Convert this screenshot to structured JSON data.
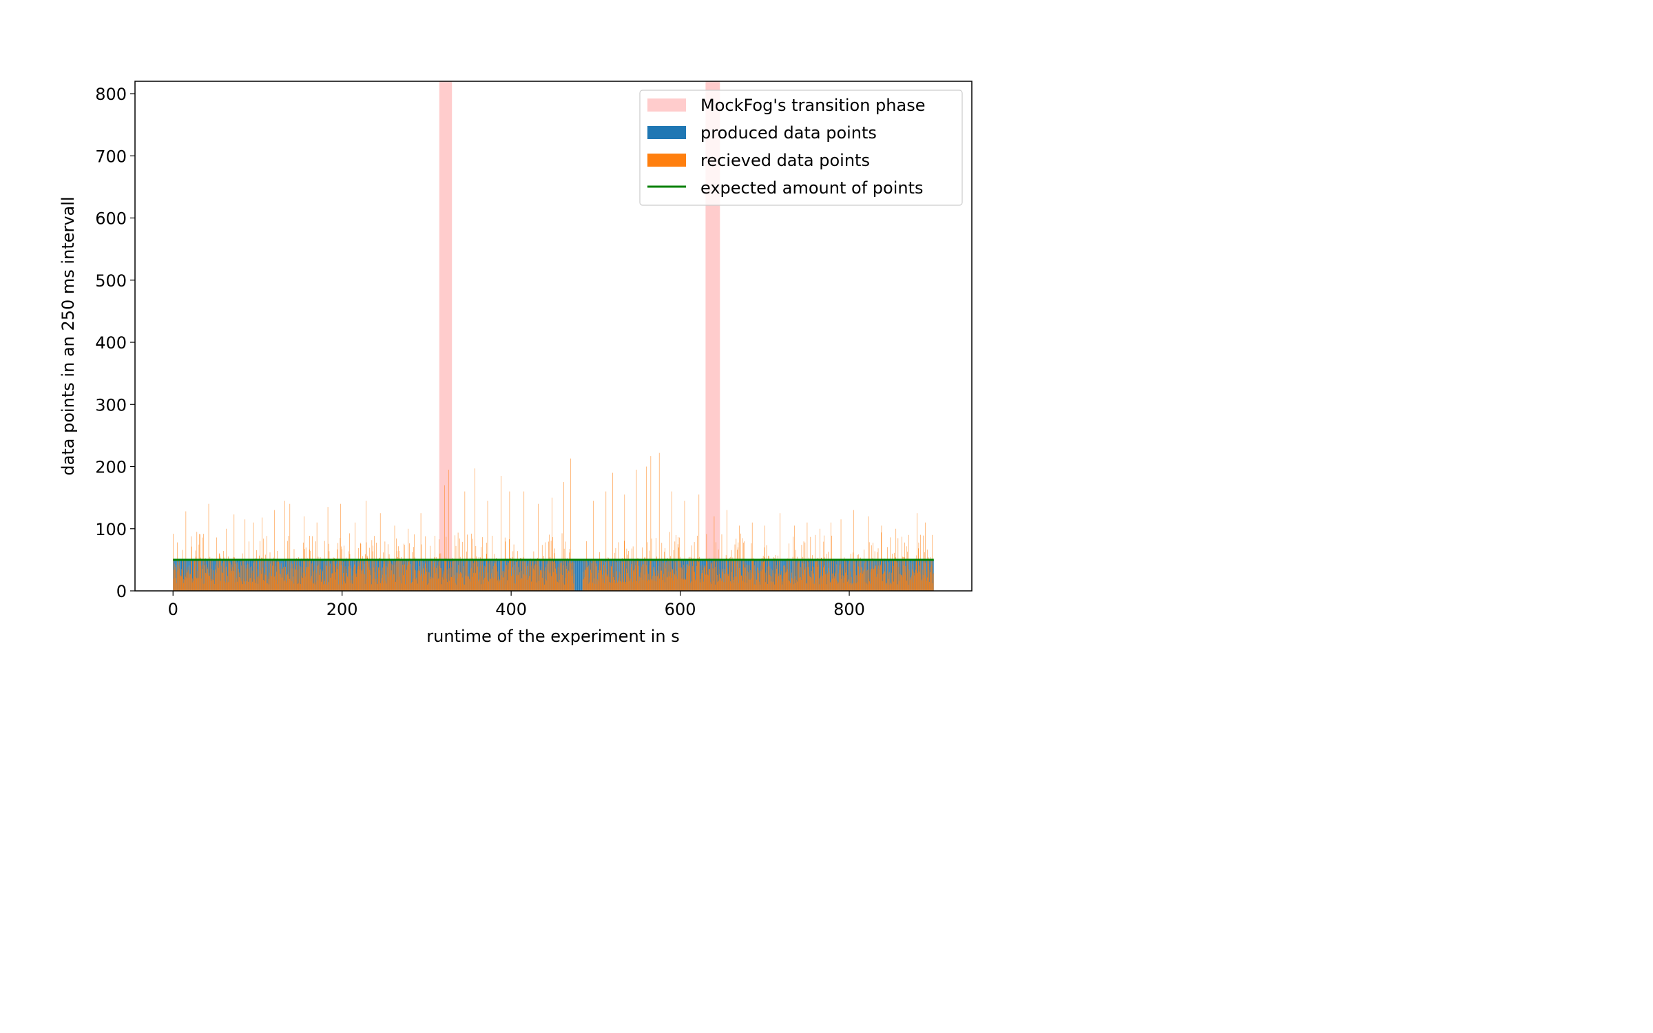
{
  "chart_data": {
    "type": "bar",
    "xlabel": "runtime of the experiment in s",
    "ylabel": "data points in an 250 ms intervall",
    "xlim": [
      -45,
      945
    ],
    "ylim": [
      0,
      820
    ],
    "xticks": [
      0,
      200,
      400,
      600,
      800
    ],
    "yticks": [
      0,
      100,
      200,
      300,
      400,
      500,
      600,
      700,
      800
    ],
    "legend_position": "top-right",
    "colors": {
      "transition": "#ffcccc",
      "produced": "#1f77b4",
      "received": "#ff7f0e",
      "expected": "#008000"
    },
    "transition_phases": [
      [
        315,
        330
      ],
      [
        630,
        647
      ]
    ],
    "expected_amount": 50,
    "produced_level": 50,
    "series": [
      {
        "name": "produced data points",
        "description": "roughly constant at about 50 points per 250 ms interval from 0 to 900 s"
      },
      {
        "name": "recieved data points",
        "description": "noisy, mostly 20-80 points per interval with spikes up to about 220; a gap near 475-485 s"
      }
    ],
    "received_spikes": [
      [
        5,
        78
      ],
      [
        15,
        128
      ],
      [
        28,
        95
      ],
      [
        42,
        140
      ],
      [
        63,
        100
      ],
      [
        72,
        123
      ],
      [
        85,
        115
      ],
      [
        95,
        110
      ],
      [
        105,
        118
      ],
      [
        120,
        130
      ],
      [
        132,
        145
      ],
      [
        138,
        140
      ],
      [
        155,
        120
      ],
      [
        170,
        110
      ],
      [
        183,
        135
      ],
      [
        198,
        140
      ],
      [
        215,
        110
      ],
      [
        228,
        145
      ],
      [
        245,
        125
      ],
      [
        262,
        105
      ],
      [
        278,
        100
      ],
      [
        293,
        125
      ],
      [
        321,
        170
      ],
      [
        326,
        195
      ],
      [
        345,
        160
      ],
      [
        357,
        197
      ],
      [
        372,
        145
      ],
      [
        388,
        185
      ],
      [
        398,
        160
      ],
      [
        415,
        160
      ],
      [
        432,
        140
      ],
      [
        448,
        150
      ],
      [
        462,
        175
      ],
      [
        470,
        213
      ],
      [
        497,
        145
      ],
      [
        512,
        160
      ],
      [
        520,
        190
      ],
      [
        534,
        155
      ],
      [
        548,
        195
      ],
      [
        560,
        200
      ],
      [
        565,
        217
      ],
      [
        575,
        222
      ],
      [
        590,
        160
      ],
      [
        605,
        145
      ],
      [
        622,
        155
      ],
      [
        640,
        120
      ],
      [
        655,
        130
      ],
      [
        670,
        105
      ],
      [
        685,
        110
      ],
      [
        700,
        105
      ],
      [
        718,
        125
      ],
      [
        735,
        105
      ],
      [
        750,
        110
      ],
      [
        765,
        100
      ],
      [
        778,
        110
      ],
      [
        790,
        115
      ],
      [
        805,
        130
      ],
      [
        822,
        120
      ],
      [
        838,
        105
      ],
      [
        855,
        100
      ],
      [
        870,
        90
      ],
      [
        880,
        125
      ],
      [
        890,
        110
      ],
      [
        898,
        90
      ]
    ],
    "legend": [
      {
        "label": "MockFog's transition phase",
        "key": "transition"
      },
      {
        "label": "produced data points",
        "key": "produced"
      },
      {
        "label": "recieved data points",
        "key": "received"
      },
      {
        "label": "expected amount of points",
        "key": "expected"
      }
    ]
  }
}
